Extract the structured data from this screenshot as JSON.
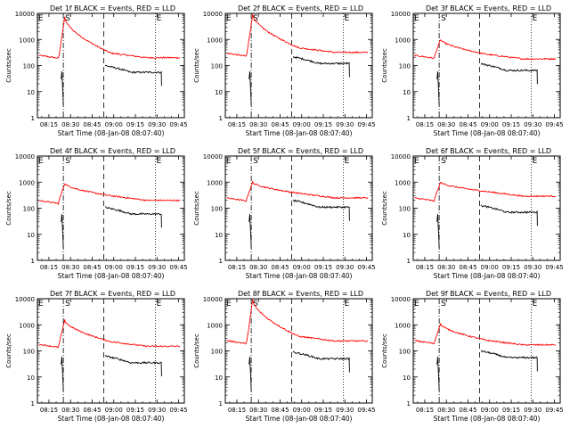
{
  "window": {
    "x_label": "Start Time (08-Jan-08 08:07:40)",
    "y_label": "Counts/sec",
    "x_ticks": [
      "08:15",
      "08:30",
      "08:45",
      "09:00",
      "09:15",
      "09:30",
      "09:45"
    ],
    "y_ticks": [
      "1",
      "10",
      "100",
      "1000",
      "10000"
    ],
    "marker_labels": {
      "start": "S",
      "end": "E"
    },
    "colors": {
      "events": "#000000",
      "lld": "#ff0000",
      "axes": "#000000",
      "background": "#ffffff"
    }
  },
  "chart_data": [
    {
      "type": "line",
      "title": "Det 1f BLACK = Events, RED = LLD",
      "x_unit": "time UT",
      "ylim": [
        1,
        10000
      ],
      "y_scale": "log",
      "events_start": [
        "08:24",
        60
      ],
      "lld_pre": 250,
      "lld_peak": 7000,
      "lld_post": 200,
      "events_post": 55,
      "markers": {
        "dashdot": "08:25",
        "dashed": "08:53",
        "dotted": "09:29"
      }
    },
    {
      "type": "line",
      "title": "Det 2f BLACK = Events, RED = LLD",
      "x_unit": "time UT",
      "ylim": [
        1,
        10000
      ],
      "y_scale": "log",
      "events_start": [
        "08:24",
        60
      ],
      "lld_pre": 300,
      "lld_peak": 9000,
      "lld_post": 320,
      "events_post": 120,
      "markers": {
        "dashdot": "08:25",
        "dashed": "08:53",
        "dotted": "09:29"
      }
    },
    {
      "type": "line",
      "title": "Det 3f BLACK = Events, RED = LLD",
      "x_unit": "time UT",
      "ylim": [
        1,
        10000
      ],
      "y_scale": "log",
      "events_start": [
        "08:24",
        60
      ],
      "lld_pre": 250,
      "lld_peak": 1000,
      "lld_post": 180,
      "events_post": 65,
      "markers": {
        "dashdot": "08:25",
        "dashed": "08:53",
        "dotted": "09:29"
      }
    },
    {
      "type": "line",
      "title": "Det 4f BLACK = Events, RED = LLD",
      "x_unit": "time UT",
      "ylim": [
        1,
        10000
      ],
      "y_scale": "log",
      "events_start": [
        "08:24",
        60
      ],
      "lld_pre": 200,
      "lld_peak": 900,
      "lld_post": 200,
      "events_post": 60,
      "markers": {
        "dashdot": "08:25",
        "dashed": "08:53",
        "dotted": "09:29"
      }
    },
    {
      "type": "line",
      "title": "Det 5f BLACK = Events, RED = LLD",
      "x_unit": "time UT",
      "ylim": [
        1,
        10000
      ],
      "y_scale": "log",
      "events_start": [
        "08:24",
        60
      ],
      "lld_pre": 250,
      "lld_peak": 1000,
      "lld_post": 250,
      "events_post": 110,
      "markers": {
        "dashdot": "08:25",
        "dashed": "08:53",
        "dotted": "09:29"
      }
    },
    {
      "type": "line",
      "title": "Det 6f BLACK = Events, RED = LLD",
      "x_unit": "time UT",
      "ylim": [
        1,
        10000
      ],
      "y_scale": "log",
      "events_start": [
        "08:24",
        60
      ],
      "lld_pre": 250,
      "lld_peak": 1000,
      "lld_post": 290,
      "events_post": 70,
      "markers": {
        "dashdot": "08:25",
        "dashed": "08:53",
        "dotted": "09:29"
      }
    },
    {
      "type": "line",
      "title": "Det 7f BLACK = Events, RED = LLD",
      "x_unit": "time UT",
      "ylim": [
        1,
        10000
      ],
      "y_scale": "log",
      "events_start": [
        "08:24",
        60
      ],
      "lld_pre": 180,
      "lld_peak": 1500,
      "lld_post": 150,
      "events_post": 35,
      "markers": {
        "dashdot": "08:25",
        "dashed": "08:53",
        "dotted": "09:29"
      }
    },
    {
      "type": "line",
      "title": "Det 8f BLACK = Events, RED = LLD",
      "x_unit": "time UT",
      "ylim": [
        1,
        10000
      ],
      "y_scale": "log",
      "events_start": [
        "08:24",
        60
      ],
      "lld_pre": 250,
      "lld_peak": 9000,
      "lld_post": 240,
      "events_post": 50,
      "markers": {
        "dashdot": "08:25",
        "dashed": "08:53",
        "dotted": "09:29"
      }
    },
    {
      "type": "line",
      "title": "Det 9f BLACK = Events, RED = LLD",
      "x_unit": "time UT",
      "ylim": [
        1,
        10000
      ],
      "y_scale": "log",
      "events_start": [
        "08:24",
        60
      ],
      "lld_pre": 250,
      "lld_peak": 1100,
      "lld_post": 170,
      "events_post": 55,
      "markers": {
        "dashdot": "08:25",
        "dashed": "08:53",
        "dotted": "09:29"
      }
    }
  ]
}
